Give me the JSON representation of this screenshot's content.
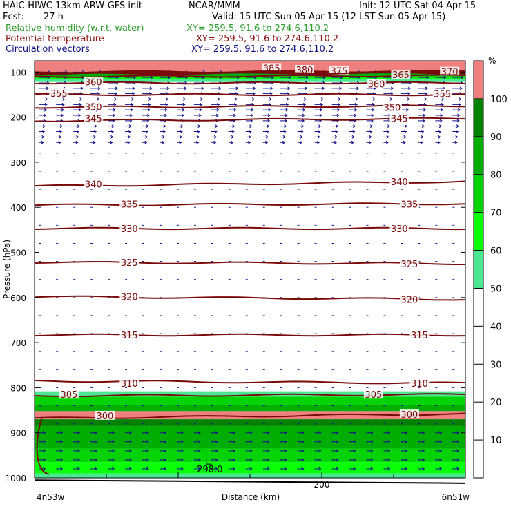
{
  "header": {
    "model": "HAIC-HIWC 13km ARW-GFS init",
    "org": "NCAR/MMM",
    "init": "Init: 12 UTC Sat 04 Apr 15",
    "fcst_label": "Fcst:",
    "fcst_value": "27 h",
    "valid": "Valid: 15 UTC Sun 05 Apr 15 (12 LST Sun 05 Apr 15)",
    "fields": [
      {
        "name": "Relative humidity (w.r.t. water)",
        "xy": "XY= 259.5, 91.6 to 274.6,110.2",
        "color": "#2a9a2a"
      },
      {
        "name": "Potential temperature",
        "xy": "XY= 259.5, 91.6 to 274.6,110.2",
        "color": "#8b1010"
      },
      {
        "name": "Circulation vectors",
        "xy": "XY= 259.5, 91.6 to 274.6,110.2",
        "color": "#101080"
      }
    ]
  },
  "chart_data": {
    "type": "heatmap",
    "xlabel": "Distance (km)",
    "ylabel": "Pressure (hPa)",
    "xlim": [
      0,
      300
    ],
    "ylim": [
      1000,
      75
    ],
    "x_ticks": [
      {
        "value": 200,
        "label": "200"
      }
    ],
    "x_endpoints": {
      "left": "4n53w",
      "right": "6n51w"
    },
    "y_ticks": [
      100,
      200,
      300,
      400,
      500,
      600,
      700,
      800,
      900,
      1000
    ],
    "colorbar": {
      "unit": "%",
      "ticks": [
        10,
        20,
        30,
        40,
        50,
        60,
        70,
        80,
        90,
        100
      ],
      "levels": [
        {
          "from": 0,
          "to": 50,
          "color": "#ffffff"
        },
        {
          "from": 50,
          "to": 60,
          "color": "#4ae892"
        },
        {
          "from": 60,
          "to": 70,
          "color": "#08ff08"
        },
        {
          "from": 70,
          "to": 80,
          "color": "#05d305"
        },
        {
          "from": 80,
          "to": 90,
          "color": "#02ad02"
        },
        {
          "from": 90,
          "to": 100,
          "color": "#018001"
        },
        {
          "from": 100,
          "to": 110,
          "color": "#f08080"
        }
      ]
    },
    "rh_bands": [
      {
        "p_top": 75,
        "p_bottom": 100,
        "rh": 105
      },
      {
        "p_top": 100,
        "p_bottom": 104,
        "rh": 95
      },
      {
        "p_top": 104,
        "p_bottom": 110,
        "rh": 85
      },
      {
        "p_top": 110,
        "p_bottom": 116,
        "rh": 65
      },
      {
        "p_top": 116,
        "p_bottom": 122,
        "rh": 55
      },
      {
        "p_top": 808,
        "p_bottom": 820,
        "rh": 55
      },
      {
        "p_top": 820,
        "p_bottom": 838,
        "rh": 75
      },
      {
        "p_top": 838,
        "p_bottom": 852,
        "rh": 85
      },
      {
        "p_top": 852,
        "p_bottom": 870,
        "rh": 105
      },
      {
        "p_top": 870,
        "p_bottom": 885,
        "rh": 95
      },
      {
        "p_top": 885,
        "p_bottom": 935,
        "rh": 85
      },
      {
        "p_top": 935,
        "p_bottom": 965,
        "rh": 75
      },
      {
        "p_top": 965,
        "p_bottom": 990,
        "rh": 65
      },
      {
        "p_top": 990,
        "p_bottom": 1012,
        "rh": 55
      }
    ],
    "theta_contours": [
      {
        "value": "385",
        "p_left": 100,
        "p_right": 98,
        "labels": [
          {
            "x": 165,
            "p": 91
          }
        ]
      },
      {
        "value": "380",
        "p_left": 101,
        "p_right": 99,
        "labels": [
          {
            "x": 188,
            "p": 95
          }
        ]
      },
      {
        "value": "375",
        "p_left": 103,
        "p_right": 101,
        "labels": [
          {
            "x": 212,
            "p": 97
          }
        ]
      },
      {
        "value": "370",
        "p_left": 104,
        "p_right": 102,
        "labels": [
          {
            "x": 289,
            "p": 99
          }
        ]
      },
      {
        "value": "365",
        "p_left": 110,
        "p_right": 108,
        "labels": [
          {
            "x": 255,
            "p": 106
          }
        ]
      },
      {
        "value": "360",
        "p_left": 124,
        "p_right": 124,
        "labels": [
          {
            "x": 41,
            "p": 122
          },
          {
            "x": 238,
            "p": 126
          }
        ]
      },
      {
        "value": "355",
        "p_left": 150,
        "p_right": 150,
        "labels": [
          {
            "x": 17,
            "p": 147
          },
          {
            "x": 284,
            "p": 148
          }
        ]
      },
      {
        "value": "350",
        "p_left": 178,
        "p_right": 175,
        "labels": [
          {
            "x": 41,
            "p": 177
          },
          {
            "x": 249,
            "p": 178
          }
        ]
      },
      {
        "value": "345",
        "p_left": 208,
        "p_right": 203,
        "labels": [
          {
            "x": 41,
            "p": 203
          },
          {
            "x": 254,
            "p": 203
          }
        ]
      },
      {
        "value": "340",
        "p_left": 353,
        "p_right": 343,
        "labels": [
          {
            "x": 41,
            "p": 348
          },
          {
            "x": 254,
            "p": 343
          }
        ]
      },
      {
        "value": "335",
        "p_left": 395,
        "p_right": 392,
        "labels": [
          {
            "x": 66,
            "p": 393
          },
          {
            "x": 261,
            "p": 393
          }
        ]
      },
      {
        "value": "330",
        "p_left": 447,
        "p_right": 447,
        "labels": [
          {
            "x": 66,
            "p": 447
          },
          {
            "x": 254,
            "p": 447
          }
        ]
      },
      {
        "value": "325",
        "p_left": 522,
        "p_right": 525,
        "labels": [
          {
            "x": 66,
            "p": 522
          },
          {
            "x": 261,
            "p": 525
          }
        ]
      },
      {
        "value": "320",
        "p_left": 598,
        "p_right": 604,
        "labels": [
          {
            "x": 66,
            "p": 598
          },
          {
            "x": 261,
            "p": 604
          }
        ]
      },
      {
        "value": "315",
        "p_left": 683,
        "p_right": 683,
        "labels": [
          {
            "x": 66,
            "p": 683
          },
          {
            "x": 268,
            "p": 683
          }
        ]
      },
      {
        "value": "310",
        "p_left": 785,
        "p_right": 790,
        "labels": [
          {
            "x": 66,
            "p": 790
          },
          {
            "x": 268,
            "p": 790
          }
        ]
      },
      {
        "value": "305",
        "p_left": 818,
        "p_right": 815,
        "labels": [
          {
            "x": 24,
            "p": 815
          },
          {
            "x": 236,
            "p": 815
          }
        ]
      },
      {
        "value": "300",
        "p_left": 868,
        "p_right": 858,
        "labels": [
          {
            "x": 49,
            "p": 862
          },
          {
            "x": 261,
            "p": 859
          }
        ]
      }
    ],
    "theta_min": {
      "value": "298.0",
      "x": 122,
      "p": 988
    },
    "ground": {
      "p_left": 1005,
      "p_right": 1012
    },
    "wind_vectors": {
      "layer": "upper",
      "p_top": 100,
      "p_bottom": 260,
      "direction": "east"
    }
  }
}
